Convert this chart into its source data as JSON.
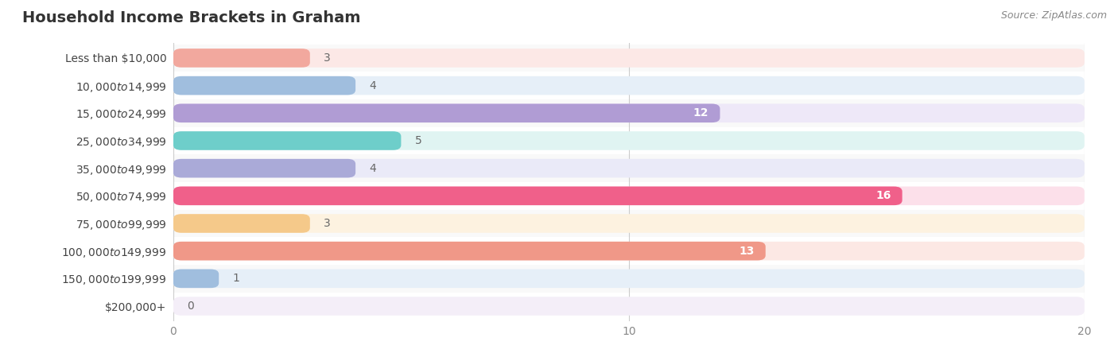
{
  "title": "Household Income Brackets in Graham",
  "source": "Source: ZipAtlas.com",
  "categories": [
    "Less than $10,000",
    "$10,000 to $14,999",
    "$15,000 to $24,999",
    "$25,000 to $34,999",
    "$35,000 to $49,999",
    "$50,000 to $74,999",
    "$75,000 to $99,999",
    "$100,000 to $149,999",
    "$150,000 to $199,999",
    "$200,000+"
  ],
  "values": [
    3,
    4,
    12,
    5,
    4,
    16,
    3,
    13,
    1,
    0
  ],
  "bar_colors": [
    "#f2a89e",
    "#a0bede",
    "#b09cd4",
    "#6ececa",
    "#aaaad8",
    "#f0608a",
    "#f5c98a",
    "#f09888",
    "#a0bede",
    "#c8aed8"
  ],
  "bar_bg_colors": [
    "#fce8e6",
    "#e6eff8",
    "#eee8f8",
    "#e0f4f2",
    "#eaeaf8",
    "#fce0ea",
    "#fdf2e0",
    "#fce8e4",
    "#e6eff8",
    "#f4eef8"
  ],
  "xlim": [
    0,
    20
  ],
  "xticks": [
    0,
    10,
    20
  ],
  "background_color": "#ffffff",
  "row_bg_color": "#f5f5f5",
  "title_fontsize": 14,
  "label_fontsize": 10,
  "value_fontsize": 10
}
